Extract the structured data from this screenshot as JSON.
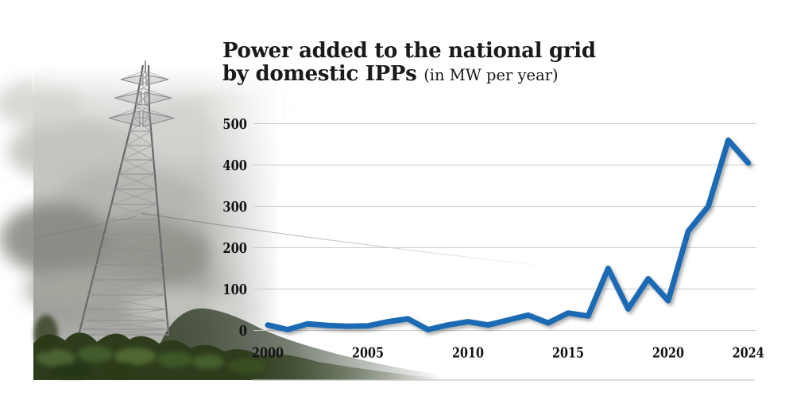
{
  "title": {
    "line1": "Power added to the national grid",
    "line2": "by domestic IPPs",
    "suffix": "(in MW per year)"
  },
  "photo": {
    "subject": "electricity-transmission-tower-with-cloudy-sky-and-green-hill"
  },
  "chart_data": {
    "type": "line",
    "title": "Power added to the national grid by domestic IPPs",
    "unit_note": "(in MW per year)",
    "x": [
      2000,
      2001,
      2002,
      2003,
      2004,
      2005,
      2006,
      2007,
      2008,
      2009,
      2010,
      2011,
      2012,
      2013,
      2014,
      2015,
      2016,
      2017,
      2018,
      2019,
      2020,
      2021,
      2022,
      2023,
      2024
    ],
    "values": [
      13,
      2,
      16,
      12,
      10,
      11,
      21,
      28,
      2,
      13,
      21,
      13,
      25,
      37,
      18,
      42,
      35,
      150,
      52,
      125,
      72,
      240,
      300,
      460,
      405
    ],
    "xticks": [
      2000,
      2005,
      2010,
      2015,
      2020,
      2024
    ],
    "yticks": [
      0,
      100,
      200,
      300,
      400,
      500
    ],
    "ylim": [
      0,
      500
    ],
    "grid": true,
    "legend": "none",
    "line_color": "#1a6bb3",
    "grid_color": "#cbcbcb",
    "tick_color": "#111111"
  }
}
